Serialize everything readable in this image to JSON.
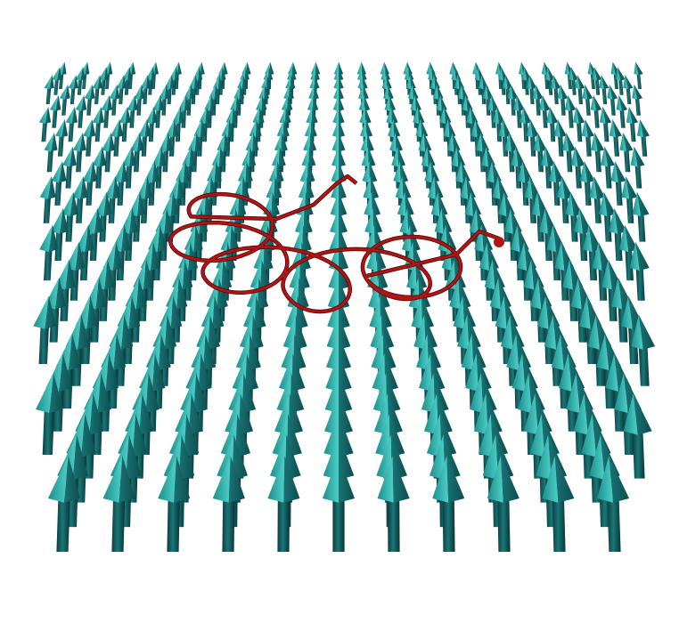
{
  "figure": {
    "description_free": true,
    "arrow_field": {
      "icon": "upward-arrow-icon",
      "shaft_color": "#0f5a5c",
      "head_light_color": "#3cc3bd",
      "head_dark_color": "#1a7e7e"
    },
    "trajectory": {
      "icon": "trajectory-curve",
      "color": "#b01515",
      "end_marker_color": "#b01515"
    }
  }
}
